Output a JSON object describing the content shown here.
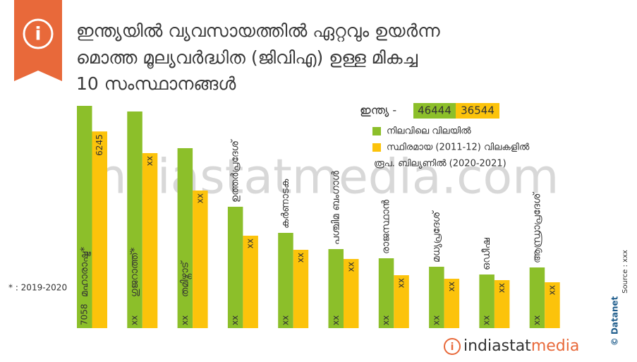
{
  "chart_data": {
    "type": "bar",
    "title_lines": [
      "ഇന്ത്യയിൽ വ്യവസായത്തിൽ ഏറ്റവും ഉയർന്ന",
      "മൊത്ത മൂല്യവർദ്ധിത (ജിവിഎ) ഉള്ള മികച്ച",
      "10 സംസ്ഥാനങ്ങൾ"
    ],
    "india": {
      "label": "ഇന്ത്യ -",
      "values": [
        46444,
        36544
      ]
    },
    "unit": "രൂപ. ബില്യണിൽ (2020-2021)",
    "footnote": "* : 2019-2020",
    "source": "Source : xxx",
    "credit": "© Datanet",
    "watermark": "indiastatmedia.com",
    "brand": [
      "indiastat",
      "media"
    ],
    "categories": [
      "മഹാരാഷ്ട്ര*",
      "ഗുജറാത്ത്*",
      "തമിഴ്നാട്",
      "ഉത്തർപ്രദേശ്",
      "കർണാടക",
      "പശ്ചിമ ബംഗാൾ",
      "രാജസ്ഥാൻ",
      "മധ്യപ്രദേശ്",
      "ഒഡീഷ",
      "ആന്ധ്രാപ്രദേശ്"
    ],
    "series": [
      {
        "name": "നിലവിലെ വിലയിൽ",
        "color": "#8cbf2a",
        "values": [
          7058,
          6879,
          5714,
          3854,
          3025,
          2510,
          2218,
          1949,
          1703,
          1927
        ],
        "value_labels": [
          "7058",
          "xx",
          "xx",
          "xx",
          "xx",
          "xx",
          "xx",
          "xx",
          "xx",
          "xx"
        ]
      },
      {
        "name": "സ്ഥിരമായ (2011-12) വിലകളിൽ",
        "color": "#fcc30b",
        "values": [
          6245,
          5557,
          4369,
          2935,
          2487,
          2196,
          1680,
          1568,
          1524,
          1456
        ],
        "value_labels": [
          "6245",
          "xx",
          "xx",
          "xx",
          "xx",
          "xx",
          "xx",
          "xx",
          "xx",
          "xx"
        ]
      }
    ]
  }
}
